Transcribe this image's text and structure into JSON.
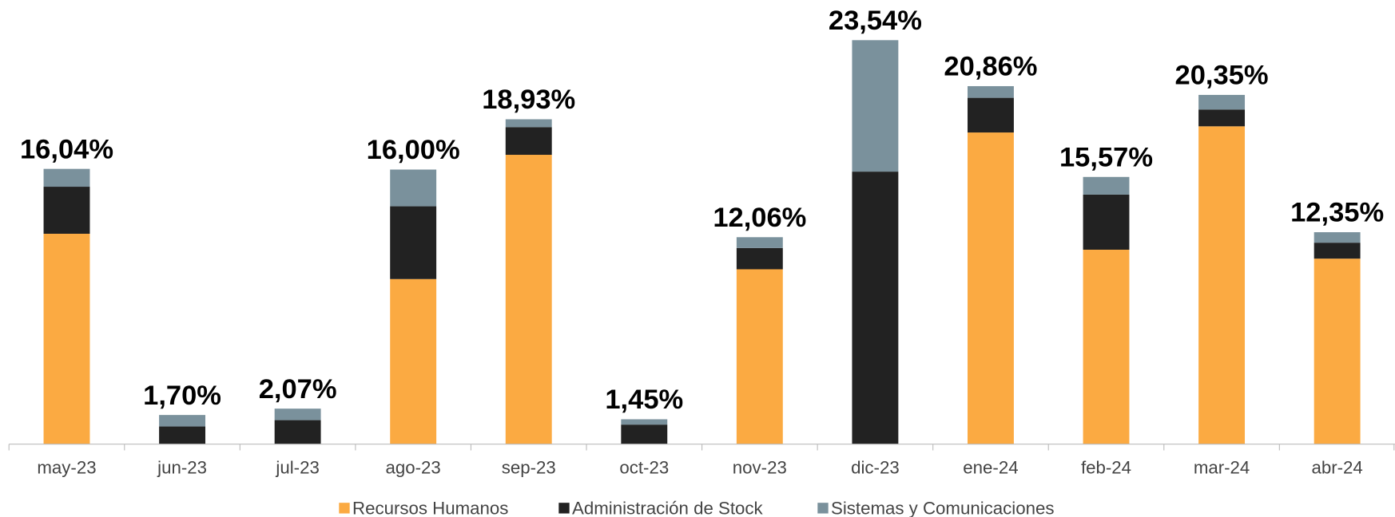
{
  "chart_data": {
    "type": "stacked_bar",
    "categories": [
      "may-23",
      "jun-23",
      "jul-23",
      "ago-23",
      "sep-23",
      "oct-23",
      "nov-23",
      "dic-23",
      "ene-24",
      "feb-24",
      "mar-24",
      "abr-24"
    ],
    "series": [
      {
        "name": "Recursos Humanos",
        "color": "#fbaa42",
        "values": [
          12.26,
          0,
          0,
          9.62,
          16.86,
          0,
          10.19,
          0,
          18.16,
          11.33,
          18.52,
          10.81
        ]
      },
      {
        "name": "Administración de Stock",
        "color": "#222222",
        "values": [
          2.74,
          1.03,
          1.4,
          4.24,
          1.61,
          1.14,
          1.24,
          15.88,
          2.02,
          3.21,
          0.98,
          0.93
        ]
      },
      {
        "name": "Sistemas y Comunicaciones",
        "color": "#7a919c",
        "values": [
          1.04,
          0.67,
          0.67,
          2.14,
          0.46,
          0.31,
          0.63,
          7.66,
          0.68,
          1.03,
          0.85,
          0.61
        ]
      }
    ],
    "totals": [
      16.04,
      1.7,
      2.07,
      16.0,
      18.93,
      1.45,
      12.06,
      23.54,
      20.86,
      15.57,
      20.35,
      12.35
    ],
    "total_value_labels": [
      "16,04%",
      "1,70%",
      "2,07%",
      "16,00%",
      "18,93%",
      "1,45%",
      "12,06%",
      "23,54%",
      "20,86%",
      "15,57%",
      "20,35%",
      "12,35%"
    ],
    "ylim": [
      0,
      25
    ],
    "legend": "bottom"
  }
}
